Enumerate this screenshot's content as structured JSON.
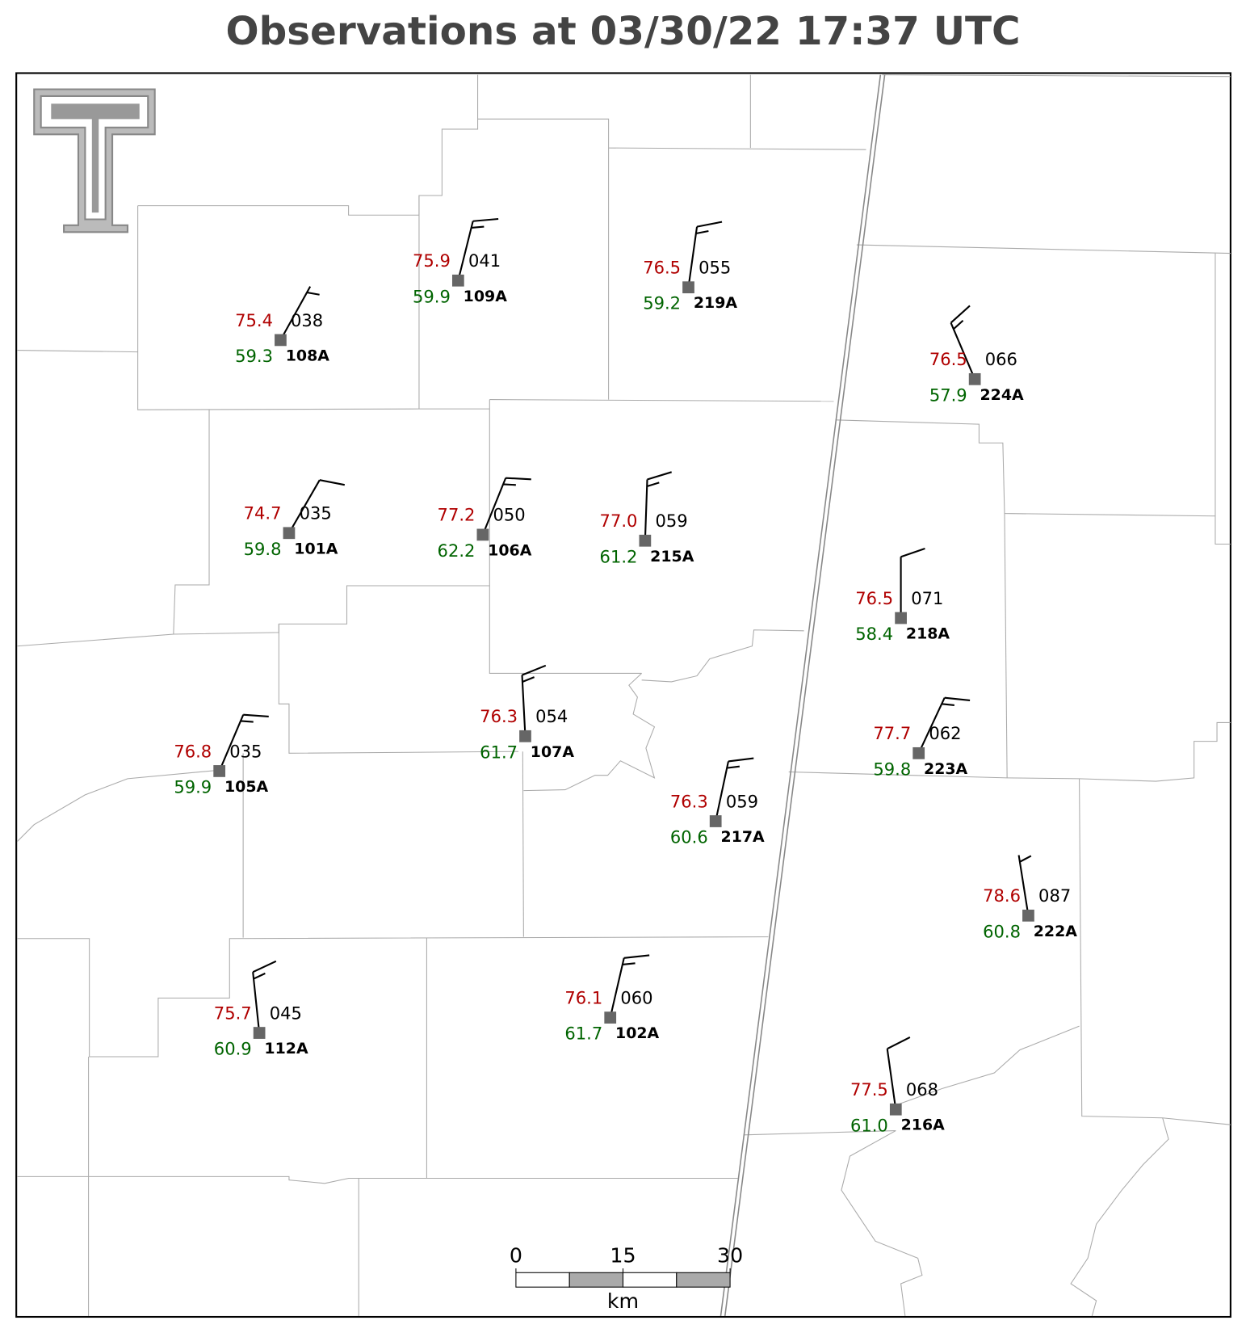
{
  "title": "Observations at 03/30/22 17:37 UTC",
  "stations": [
    {
      "id": "108A",
      "temperature": "75.4",
      "dewpoint": "59.3",
      "pressure": "038",
      "wind_direction": 151,
      "wind_speed": 5
    },
    {
      "id": "109A",
      "temperature": "75.9",
      "dewpoint": "59.9",
      "pressure": "041",
      "wind_direction": 166,
      "wind_speed": 15
    },
    {
      "id": "219A",
      "temperature": "76.5",
      "dewpoint": "59.2",
      "pressure": "055",
      "wind_direction": 172,
      "wind_speed": 15
    },
    {
      "id": "224A",
      "temperature": "76.5",
      "dewpoint": "57.9",
      "pressure": "066",
      "wind_direction": 203,
      "wind_speed": 15
    },
    {
      "id": "101A",
      "temperature": "74.7",
      "dewpoint": "59.8",
      "pressure": "035",
      "wind_direction": 150,
      "wind_speed": 10
    },
    {
      "id": "106A",
      "temperature": "77.2",
      "dewpoint": "62.2",
      "pressure": "050",
      "wind_direction": 158,
      "wind_speed": 15
    },
    {
      "id": "215A",
      "temperature": "77.0",
      "dewpoint": "61.2",
      "pressure": "059",
      "wind_direction": 178,
      "wind_speed": 15
    },
    {
      "id": "218A",
      "temperature": "76.5",
      "dewpoint": "58.4",
      "pressure": "071",
      "wind_direction": 180,
      "wind_speed": 10
    },
    {
      "id": "107A",
      "temperature": "76.3",
      "dewpoint": "61.7",
      "pressure": "054",
      "wind_direction": 183,
      "wind_speed": 15
    },
    {
      "id": "105A",
      "temperature": "76.8",
      "dewpoint": "59.9",
      "pressure": "035",
      "wind_direction": 157,
      "wind_speed": 15
    },
    {
      "id": "217A",
      "temperature": "76.3",
      "dewpoint": "60.6",
      "pressure": "059",
      "wind_direction": 168,
      "wind_speed": 15
    },
    {
      "id": "223A",
      "temperature": "77.7",
      "dewpoint": "59.8",
      "pressure": "062",
      "wind_direction": 155,
      "wind_speed": 15
    },
    {
      "id": "222A",
      "temperature": "78.6",
      "dewpoint": "60.8",
      "pressure": "087",
      "wind_direction": 189,
      "wind_speed": 5
    },
    {
      "id": "112A",
      "temperature": "75.7",
      "dewpoint": "60.9",
      "pressure": "045",
      "wind_direction": 186,
      "wind_speed": 15
    },
    {
      "id": "102A",
      "temperature": "76.1",
      "dewpoint": "61.7",
      "pressure": "060",
      "wind_direction": 167,
      "wind_speed": 15
    },
    {
      "id": "216A",
      "temperature": "77.5",
      "dewpoint": "61.0",
      "pressure": "068",
      "wind_direction": 188,
      "wind_speed": 10
    }
  ],
  "scale_bar": {
    "ticks": [
      0,
      15,
      30
    ],
    "unit": "km"
  }
}
